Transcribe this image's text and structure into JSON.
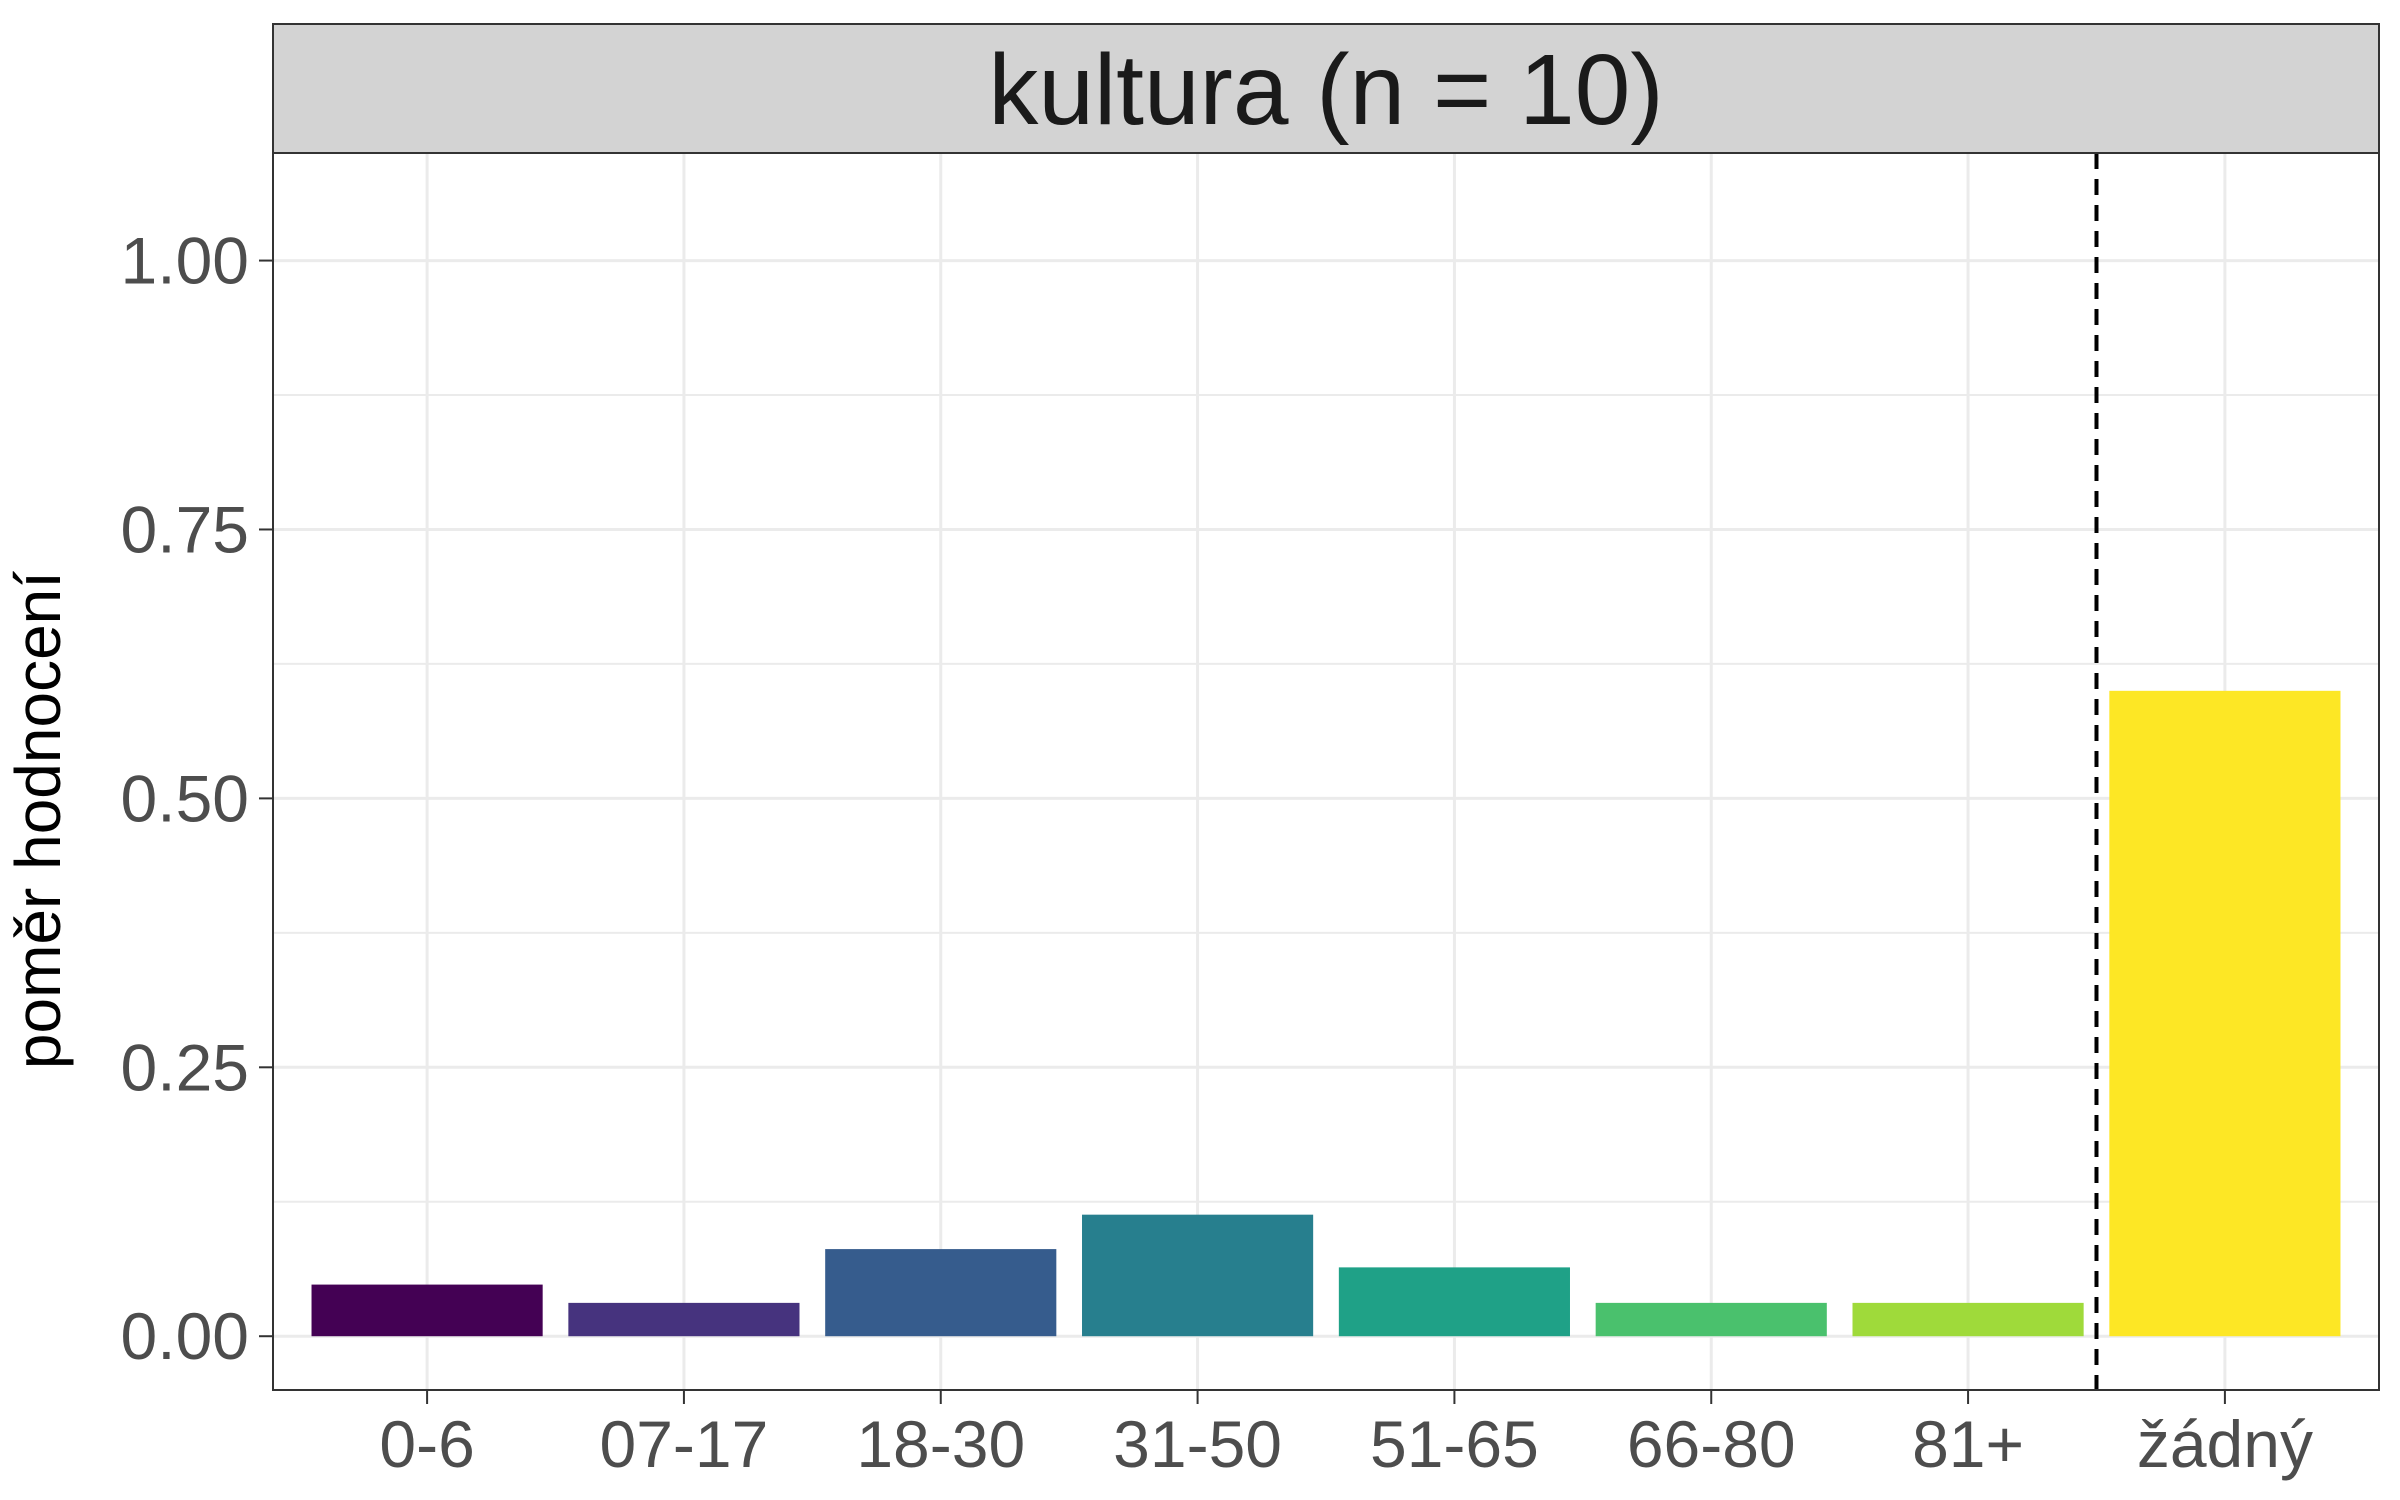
{
  "chart_data": {
    "type": "bar",
    "title": "kultura (n = 10)",
    "xlabel": "",
    "ylabel": "poměr hodnocení",
    "categories": [
      "0-6",
      "07-17",
      "18-30",
      "31-50",
      "51-65",
      "66-80",
      "81+",
      "žádný"
    ],
    "values": [
      0.048,
      0.031,
      0.081,
      0.113,
      0.064,
      0.031,
      0.031,
      0.6
    ],
    "colors": [
      "#440154",
      "#46337E",
      "#365C8D",
      "#277F8E",
      "#1FA187",
      "#4AC16D",
      "#9FDA3A",
      "#FDE725"
    ],
    "ylim": [
      -0.05,
      1.1
    ],
    "yticks": [
      0,
      0.25,
      0.5,
      0.75,
      1
    ],
    "ytick_labels": [
      "0.00",
      "0.25",
      "0.50",
      "0.75",
      "1.00"
    ],
    "reference_line": {
      "style": "dashed",
      "between_categories": [
        "81+",
        "žádný"
      ]
    },
    "grid": true,
    "legend": "none",
    "panel_background": "#FFFFFF",
    "strip_background": "#D3D3D3",
    "grid_color": "#EBEBEB"
  }
}
